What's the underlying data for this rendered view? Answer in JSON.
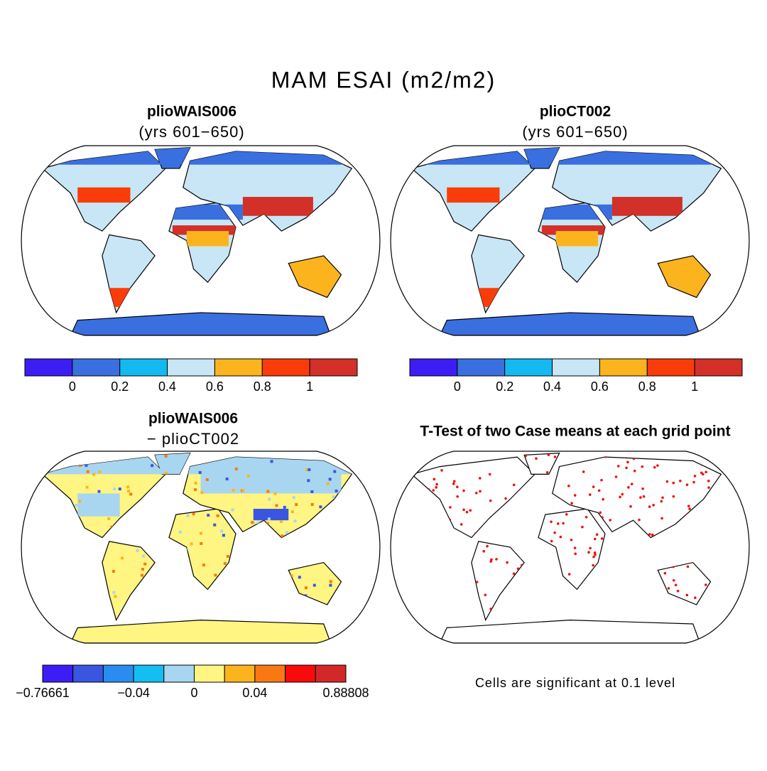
{
  "title": "MAM ESAI (m2/m2)",
  "panels": [
    {
      "title": "plioWAIS006",
      "subtitle": "(yrs 601−650)",
      "colorbar": {
        "colors": [
          "#3c1ef5",
          "#3a6fdf",
          "#14b9f0",
          "#c8e6f5",
          "#fbb41e",
          "#fa3c0a",
          "#d23028"
        ],
        "ticks": [
          0,
          0.2,
          0.4,
          0.6,
          0.8,
          1
        ]
      }
    },
    {
      "title": "plioCT002",
      "subtitle": "(yrs 601−650)",
      "colorbar": {
        "colors": [
          "#3c1ef5",
          "#3a6fdf",
          "#14b9f0",
          "#c8e6f5",
          "#fbb41e",
          "#fa3c0a",
          "#d23028"
        ],
        "ticks": [
          0,
          0.2,
          0.4,
          0.6,
          0.8,
          1
        ]
      }
    },
    {
      "title": "plioWAIS006",
      "subtitle": "− plioCT002",
      "colorbar": {
        "colors": [
          "#3c1ef5",
          "#3a56e0",
          "#2a8cf0",
          "#14bef0",
          "#a8d6f0",
          "#fff582",
          "#fbb41e",
          "#fa7814",
          "#fa0a0a",
          "#d2282a"
        ],
        "ticks": [
          {
            "value": -0.76661,
            "label": "−0.76661"
          },
          {
            "value": -0.04,
            "label": "−0.04"
          },
          0,
          0.04,
          0.88808
        ]
      }
    },
    {
      "title": "T-Test of two Case means at each grid point",
      "note": "Cells are significant at 0.1 level"
    }
  ]
}
